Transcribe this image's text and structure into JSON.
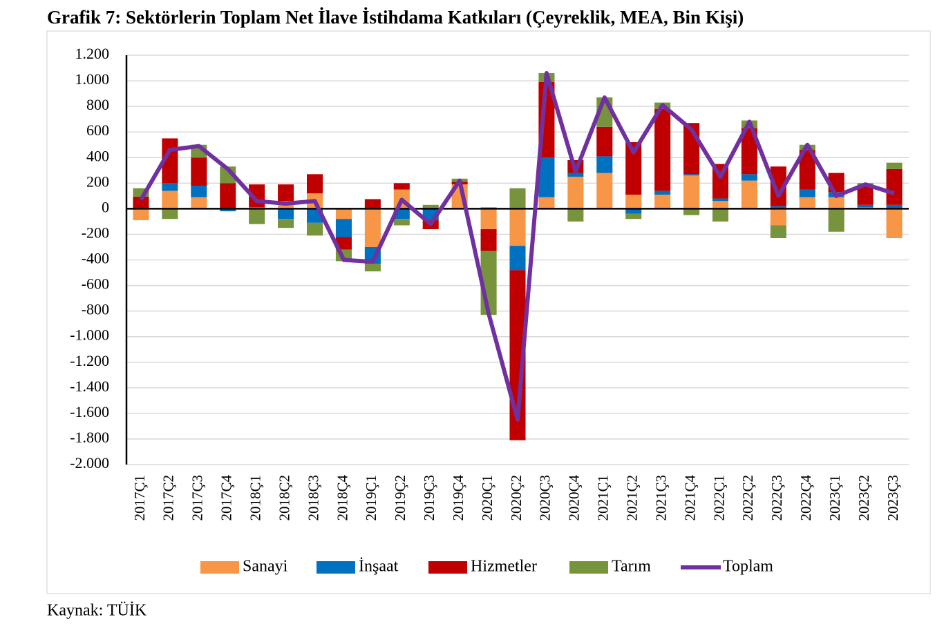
{
  "chart_data": {
    "type": "bar",
    "stacked": true,
    "title": "Grafik 7: Sektörlerin Toplam Net İlave İstihdama Katkıları (Çeyreklik, MEA, Bin Kişi)",
    "source": "Kaynak: TÜİK",
    "categories": [
      "2017Ç1",
      "2017Ç2",
      "2017Ç3",
      "2017Ç4",
      "2018Ç1",
      "2018Ç2",
      "2018Ç3",
      "2018Ç4",
      "2019Ç1",
      "2019Ç2",
      "2019Ç3",
      "2019Ç4",
      "2020Ç1",
      "2020Ç2",
      "2020Ç3",
      "2020Ç4",
      "2021Ç1",
      "2021Ç2",
      "2021Ç3",
      "2021Ç4",
      "2022Ç1",
      "2022Ç2",
      "2022Ç3",
      "2022Ç4",
      "2023Ç1",
      "2023Ç2",
      "2023Ç3"
    ],
    "series": [
      {
        "name": "Sanayi",
        "color": "#f79646",
        "values": [
          -90,
          140,
          90,
          0,
          10,
          60,
          120,
          -80,
          -300,
          150,
          0,
          190,
          -160,
          -290,
          90,
          250,
          280,
          110,
          110,
          260,
          60,
          220,
          -130,
          90,
          90,
          10,
          -230
        ]
      },
      {
        "name": "İnşaat",
        "color": "#0070c0",
        "values": [
          0,
          60,
          90,
          -20,
          0,
          -80,
          -110,
          -140,
          -130,
          -80,
          -90,
          0,
          10,
          -190,
          310,
          30,
          130,
          -40,
          30,
          10,
          20,
          50,
          20,
          60,
          40,
          20,
          30
        ]
      },
      {
        "name": "Hizmetler",
        "color": "#c00000",
        "values": [
          95,
          350,
          220,
          200,
          180,
          130,
          150,
          -100,
          75,
          50,
          -70,
          20,
          -170,
          -1330,
          590,
          100,
          230,
          410,
          640,
          400,
          270,
          360,
          310,
          310,
          150,
          150,
          280
        ]
      },
      {
        "name": "Tarım",
        "color": "#77933c",
        "values": [
          65,
          -80,
          100,
          130,
          -120,
          -70,
          -100,
          -90,
          -60,
          -50,
          30,
          25,
          -500,
          160,
          70,
          -100,
          230,
          -40,
          50,
          -50,
          -100,
          60,
          -100,
          40,
          -180,
          20,
          50
        ]
      },
      {
        "name": "Toplam",
        "type": "line",
        "color": "#7030a0",
        "values": [
          70,
          460,
          490,
          310,
          60,
          40,
          60,
          -400,
          -415,
          70,
          -120,
          220,
          -820,
          -1650,
          1060,
          290,
          870,
          440,
          810,
          620,
          250,
          680,
          100,
          500,
          100,
          190,
          120
        ]
      }
    ],
    "ylim": [
      -2000,
      1200
    ],
    "yticks": [
      {
        "value": -2000,
        "label": "-2.000"
      },
      {
        "value": -1800,
        "label": "-1.800"
      },
      {
        "value": -1600,
        "label": "-1.600"
      },
      {
        "value": -1400,
        "label": "-1.400"
      },
      {
        "value": -1200,
        "label": "-1.200"
      },
      {
        "value": -1000,
        "label": "-1.000"
      },
      -800,
      -600,
      -400,
      -200,
      0,
      200,
      400,
      600,
      800,
      {
        "value": 1000,
        "label": "1.000"
      },
      {
        "value": 1200,
        "label": "1.200"
      }
    ],
    "grid": true,
    "legend": "bottom"
  }
}
